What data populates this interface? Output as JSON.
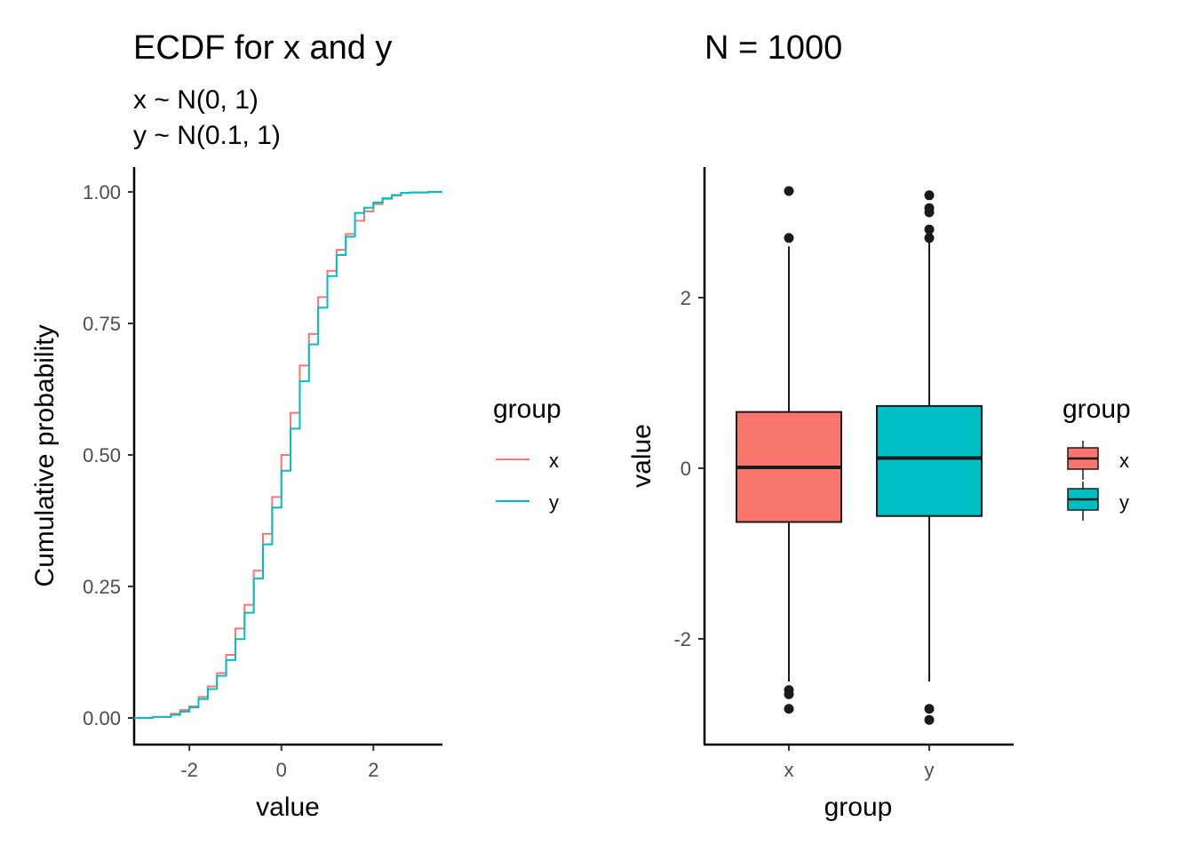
{
  "colors": {
    "x": "#F8766D",
    "y": "#00BFC4",
    "ink": "#1a1a1a"
  },
  "left_panel": {
    "title": "ECDF for x and y",
    "subtitle_line1": "x ~ N(0, 1)",
    "subtitle_line2": "y ~ N(0.1, 1)",
    "xlabel": "value",
    "ylabel": "Cumulative probability",
    "x_ticks": [
      "-2",
      "0",
      "2"
    ],
    "y_ticks": [
      "0.00",
      "0.25",
      "0.50",
      "0.75",
      "1.00"
    ],
    "legend": {
      "title": "group",
      "items": [
        "x",
        "y"
      ]
    }
  },
  "right_panel": {
    "title": "N = 1000",
    "xlabel": "group",
    "ylabel": "value",
    "x_ticks": [
      "x",
      "y"
    ],
    "y_ticks": [
      "-2",
      "0",
      "2"
    ],
    "legend": {
      "title": "group",
      "items": [
        "x",
        "y"
      ]
    }
  },
  "chart_data": [
    {
      "type": "line",
      "title": "ECDF for x and y",
      "subtitle": "x ~ N(0, 1)\ny ~ N(0.1, 1)",
      "xlabel": "value",
      "ylabel": "Cumulative probability",
      "xlim": [
        -3.2,
        3.5
      ],
      "ylim": [
        0,
        1
      ],
      "grid": false,
      "legend_position": "right",
      "series": [
        {
          "name": "x",
          "x": [
            -3.2,
            -2.8,
            -2.4,
            -2.2,
            -2.0,
            -1.8,
            -1.6,
            -1.4,
            -1.2,
            -1.0,
            -0.8,
            -0.6,
            -0.4,
            -0.2,
            0.0,
            0.2,
            0.4,
            0.6,
            0.8,
            1.0,
            1.2,
            1.4,
            1.6,
            1.8,
            2.0,
            2.2,
            2.4,
            2.6,
            2.8,
            3.2,
            3.5
          ],
          "y": [
            0.0,
            0.002,
            0.008,
            0.015,
            0.022,
            0.04,
            0.06,
            0.085,
            0.12,
            0.17,
            0.215,
            0.28,
            0.35,
            0.42,
            0.5,
            0.58,
            0.67,
            0.73,
            0.8,
            0.85,
            0.89,
            0.92,
            0.945,
            0.963,
            0.977,
            0.987,
            0.993,
            0.998,
            0.999,
            1.0,
            1.0
          ]
        },
        {
          "name": "y",
          "x": [
            -3.2,
            -2.8,
            -2.4,
            -2.2,
            -2.0,
            -1.8,
            -1.6,
            -1.4,
            -1.2,
            -1.0,
            -0.8,
            -0.6,
            -0.4,
            -0.2,
            0.0,
            0.2,
            0.4,
            0.6,
            0.8,
            1.0,
            1.2,
            1.4,
            1.6,
            1.8,
            2.0,
            2.2,
            2.4,
            2.6,
            2.8,
            3.2,
            3.5
          ],
          "y": [
            0.0,
            0.002,
            0.006,
            0.012,
            0.02,
            0.036,
            0.055,
            0.08,
            0.11,
            0.15,
            0.2,
            0.265,
            0.33,
            0.4,
            0.47,
            0.55,
            0.64,
            0.71,
            0.78,
            0.84,
            0.88,
            0.915,
            0.96,
            0.97,
            0.98,
            0.988,
            0.994,
            0.998,
            0.999,
            1.0,
            1.0
          ]
        }
      ]
    },
    {
      "type": "box",
      "title": "N = 1000",
      "xlabel": "group",
      "ylabel": "value",
      "categories": [
        "x",
        "y"
      ],
      "ylim": [
        -3.0,
        3.45
      ],
      "y_ticks": [
        -2,
        0,
        2
      ],
      "grid": false,
      "legend_position": "right",
      "boxes": [
        {
          "name": "x",
          "lower_whisker": -2.5,
          "q1": -0.63,
          "median": 0.01,
          "q3": 0.66,
          "upper_whisker": 2.6,
          "outliers": [
            3.25,
            2.7,
            -2.6,
            -2.65,
            -2.82
          ]
        },
        {
          "name": "y",
          "lower_whisker": -2.5,
          "q1": -0.56,
          "median": 0.12,
          "q3": 0.73,
          "upper_whisker": 2.7,
          "outliers": [
            3.2,
            3.05,
            3.0,
            2.8,
            2.7,
            -2.82,
            -2.95
          ]
        }
      ]
    }
  ]
}
